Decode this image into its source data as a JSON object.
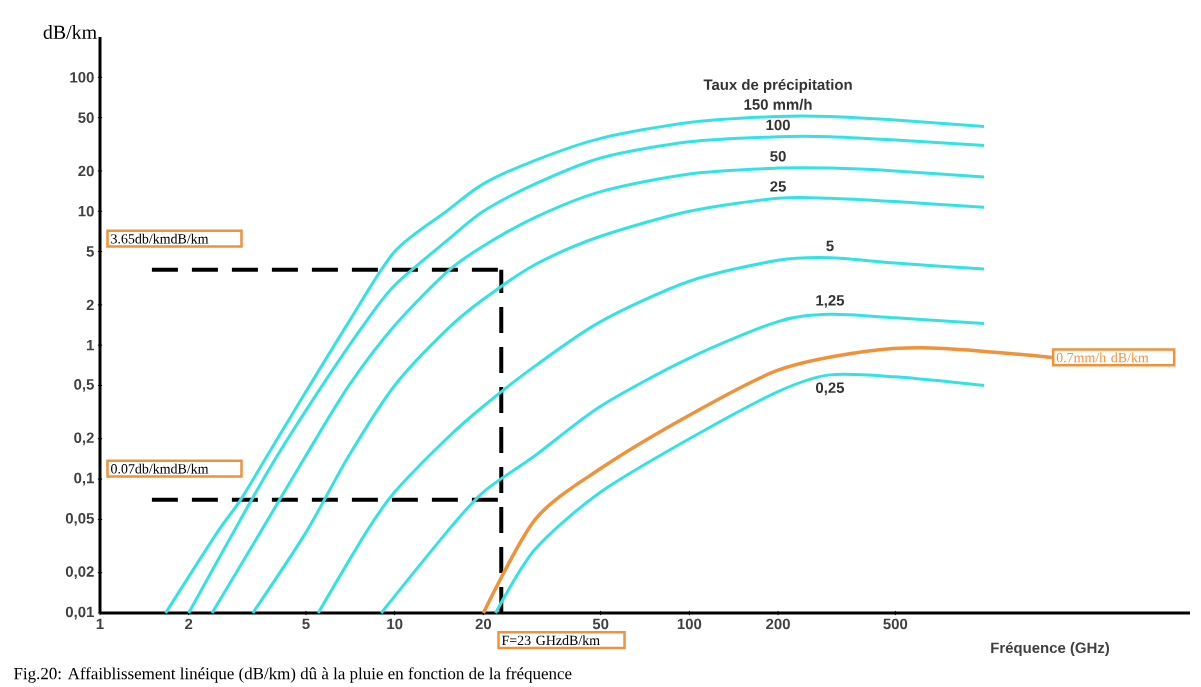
{
  "chart_data": {
    "type": "line",
    "log": "xy",
    "xlabel": "Fréquence (GHz)",
    "ylabel": "dB/km",
    "legend_title": "Taux de précipitation",
    "xlim": [
      1,
      5000
    ],
    "ylim": [
      0.01,
      200
    ],
    "xticks": [
      1,
      2,
      5,
      10,
      20,
      50,
      100,
      200,
      500
    ],
    "yticks": [
      {
        "value": 0.01,
        "label": "0,01"
      },
      {
        "value": 0.02,
        "label": "0,02"
      },
      {
        "value": 0.05,
        "label": "0,05"
      },
      {
        "value": 0.1,
        "label": "0,1"
      },
      {
        "value": 0.2,
        "label": "0,2"
      },
      {
        "value": 0.5,
        "label": "0,5"
      },
      1,
      2,
      5,
      10,
      20,
      50,
      100
    ],
    "series": [
      {
        "name": "150 mm/h",
        "color": "#33e3e3",
        "x": [
          1.67,
          2.5,
          3,
          4,
          5,
          7,
          10,
          15,
          20,
          30,
          50,
          100,
          200,
          300,
          500,
          1000
        ],
        "values": [
          0.01,
          0.04,
          0.07,
          0.2,
          0.45,
          1.5,
          5,
          10,
          16,
          24,
          35,
          46,
          51,
          51,
          48,
          43
        ]
      },
      {
        "name": "100",
        "color": "#33e3e3",
        "x": [
          2,
          3,
          4,
          6,
          8,
          10,
          15,
          20,
          30,
          50,
          100,
          200,
          300,
          500,
          1000
        ],
        "values": [
          0.01,
          0.05,
          0.15,
          0.6,
          1.5,
          2.8,
          6,
          10,
          16,
          25,
          33,
          36,
          36,
          34,
          31
        ]
      },
      {
        "name": "50",
        "color": "#33e3e3",
        "x": [
          2.4,
          3.5,
          5,
          7,
          10,
          15,
          20,
          30,
          50,
          100,
          200,
          300,
          500,
          1000
        ],
        "values": [
          0.01,
          0.04,
          0.15,
          0.5,
          1.4,
          3.5,
          5.5,
          9,
          14,
          19,
          21,
          21,
          20,
          18
        ]
      },
      {
        "name": "25",
        "color": "#33e3e3",
        "x": [
          3.3,
          5,
          7,
          10,
          15,
          20,
          30,
          50,
          100,
          200,
          300,
          500,
          1000
        ],
        "values": [
          0.01,
          0.04,
          0.15,
          0.5,
          1.3,
          2.2,
          4,
          6.5,
          10,
          12.5,
          12.5,
          11.8,
          10.7
        ]
      },
      {
        "name": "5",
        "color": "#33e3e3",
        "x": [
          5.5,
          8,
          10,
          15,
          20,
          30,
          50,
          100,
          200,
          300,
          500,
          1000
        ],
        "values": [
          0.01,
          0.04,
          0.08,
          0.2,
          0.35,
          0.7,
          1.5,
          3,
          4.3,
          4.5,
          4.1,
          3.7
        ]
      },
      {
        "name": "1,25",
        "color": "#33e3e3",
        "x": [
          9,
          15,
          20,
          30,
          50,
          100,
          200,
          300,
          500,
          1000
        ],
        "values": [
          0.01,
          0.04,
          0.08,
          0.15,
          0.35,
          0.8,
          1.5,
          1.7,
          1.6,
          1.45
        ]
      },
      {
        "name": "0,25",
        "color": "#33e3e3",
        "x": [
          22,
          30,
          50,
          100,
          200,
          300,
          500,
          1000
        ],
        "values": [
          0.01,
          0.03,
          0.08,
          0.2,
          0.45,
          0.6,
          0.58,
          0.5
        ]
      },
      {
        "name": "0.7mm/h dB/km",
        "color": "#f0923a",
        "x": [
          20,
          30,
          50,
          100,
          200,
          400,
          700,
          1700
        ],
        "values": [
          0.01,
          0.05,
          0.12,
          0.3,
          0.65,
          0.9,
          0.95,
          0.81
        ]
      }
    ],
    "ref_lines": [
      {
        "axis": "y",
        "value": 3.65,
        "label": "3.65db/kmdB/km",
        "color": "#000000",
        "line_style": "dashed"
      },
      {
        "axis": "y",
        "value": 0.07,
        "label": "0.07db/kmdB/km",
        "color": "#000000",
        "line_style": "dashed"
      },
      {
        "axis": "x",
        "value": 23,
        "label": "F=23 GHzdB/km",
        "color": "#000000",
        "line_style": "dashed"
      }
    ],
    "annotations": [
      "Fig.20: Affaiblissement linéique (dB/km) dû à la pluie en fonction de la fréquence"
    ]
  }
}
